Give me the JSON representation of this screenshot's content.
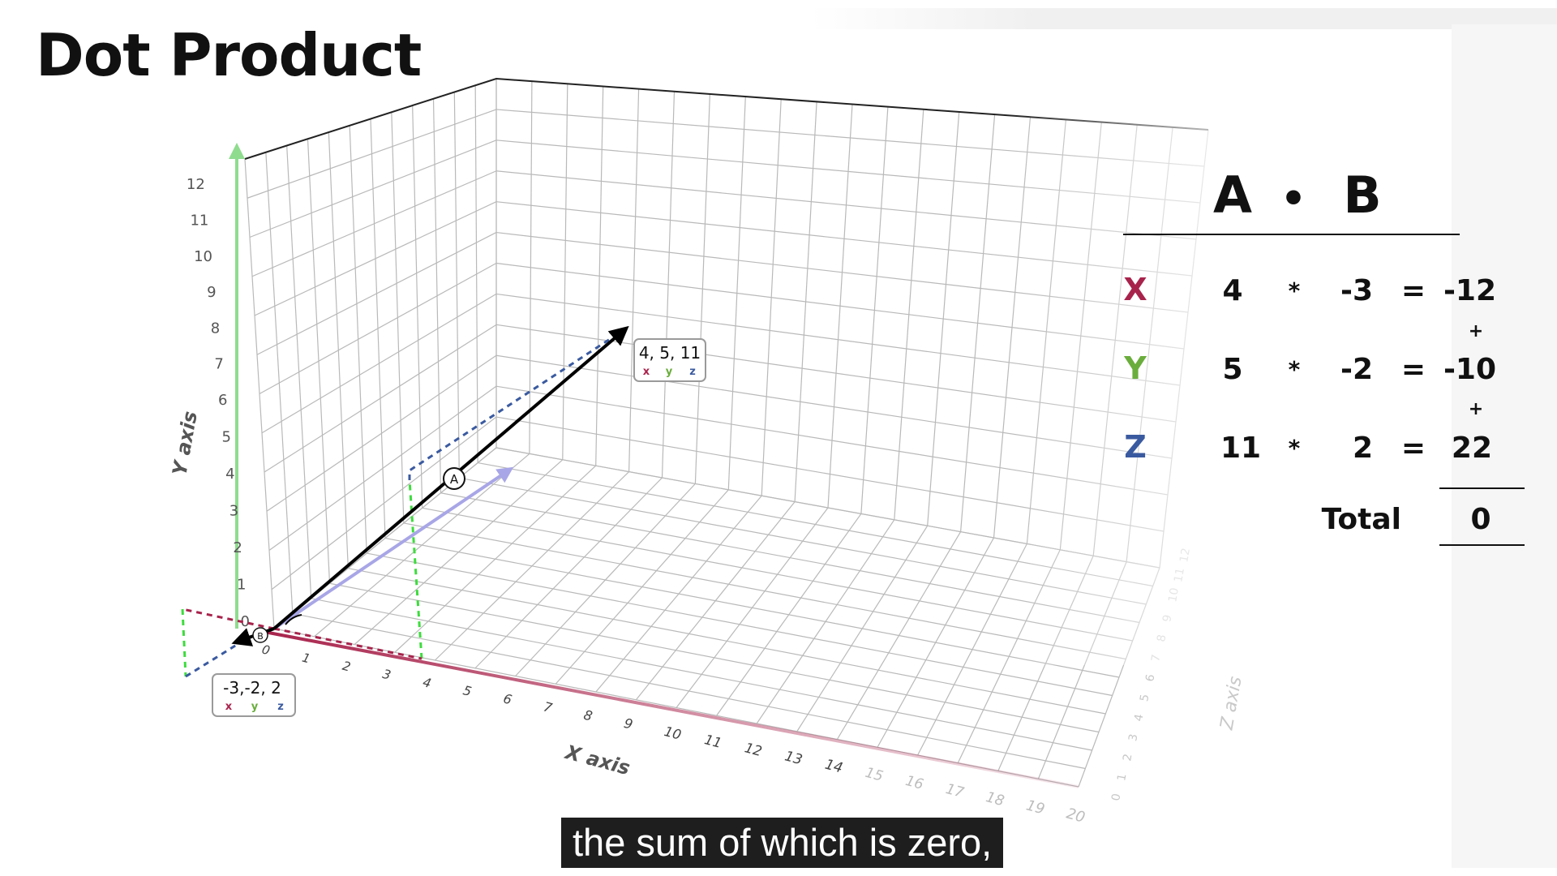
{
  "title": "Dot Product",
  "caption": "the sum of which is zero,",
  "colors": {
    "x": "#a8234c",
    "y": "#6aad3c",
    "z": "#3a5aa0",
    "grid": "#bdbdbd"
  },
  "axes": {
    "y_label": "Y axis",
    "x_label": "X axis",
    "z_label": "Z axis",
    "y_ticks": [
      "0",
      "1",
      "2",
      "3",
      "4",
      "5",
      "6",
      "7",
      "8",
      "9",
      "10",
      "11",
      "12"
    ],
    "x_ticks": [
      "0",
      "1",
      "2",
      "3",
      "4",
      "5",
      "6",
      "7",
      "8",
      "9",
      "10",
      "11",
      "12",
      "13",
      "14",
      "15",
      "16",
      "17",
      "18",
      "19",
      "20"
    ],
    "z_ticks": [
      "0",
      "1",
      "2",
      "3",
      "4",
      "5",
      "6",
      "7",
      "8",
      "9",
      "10",
      "11",
      "12"
    ]
  },
  "vectors": {
    "a": {
      "name": "A",
      "label": "4, 5, 11",
      "x": 4,
      "y": 5,
      "z": 11
    },
    "b": {
      "name": "B",
      "label": "-3,-2, 2",
      "x": -3,
      "y": -2,
      "z": 2
    },
    "component_keys": [
      "x",
      "y",
      "z"
    ]
  },
  "equation": {
    "header_a": "A",
    "header_dot": "•",
    "header_b": "B",
    "rows": [
      {
        "axis": "X",
        "a": "4",
        "op": "*",
        "b": "-3",
        "eq": "=",
        "result": "-12",
        "plus": "+"
      },
      {
        "axis": "Y",
        "a": "5",
        "op": "*",
        "b": "-2",
        "eq": "=",
        "result": "-10",
        "plus": "+"
      },
      {
        "axis": "Z",
        "a": "11",
        "op": "*",
        "b": "2",
        "eq": "=",
        "result": "22",
        "plus": ""
      }
    ],
    "total_label": "Total",
    "total_value": "0"
  }
}
